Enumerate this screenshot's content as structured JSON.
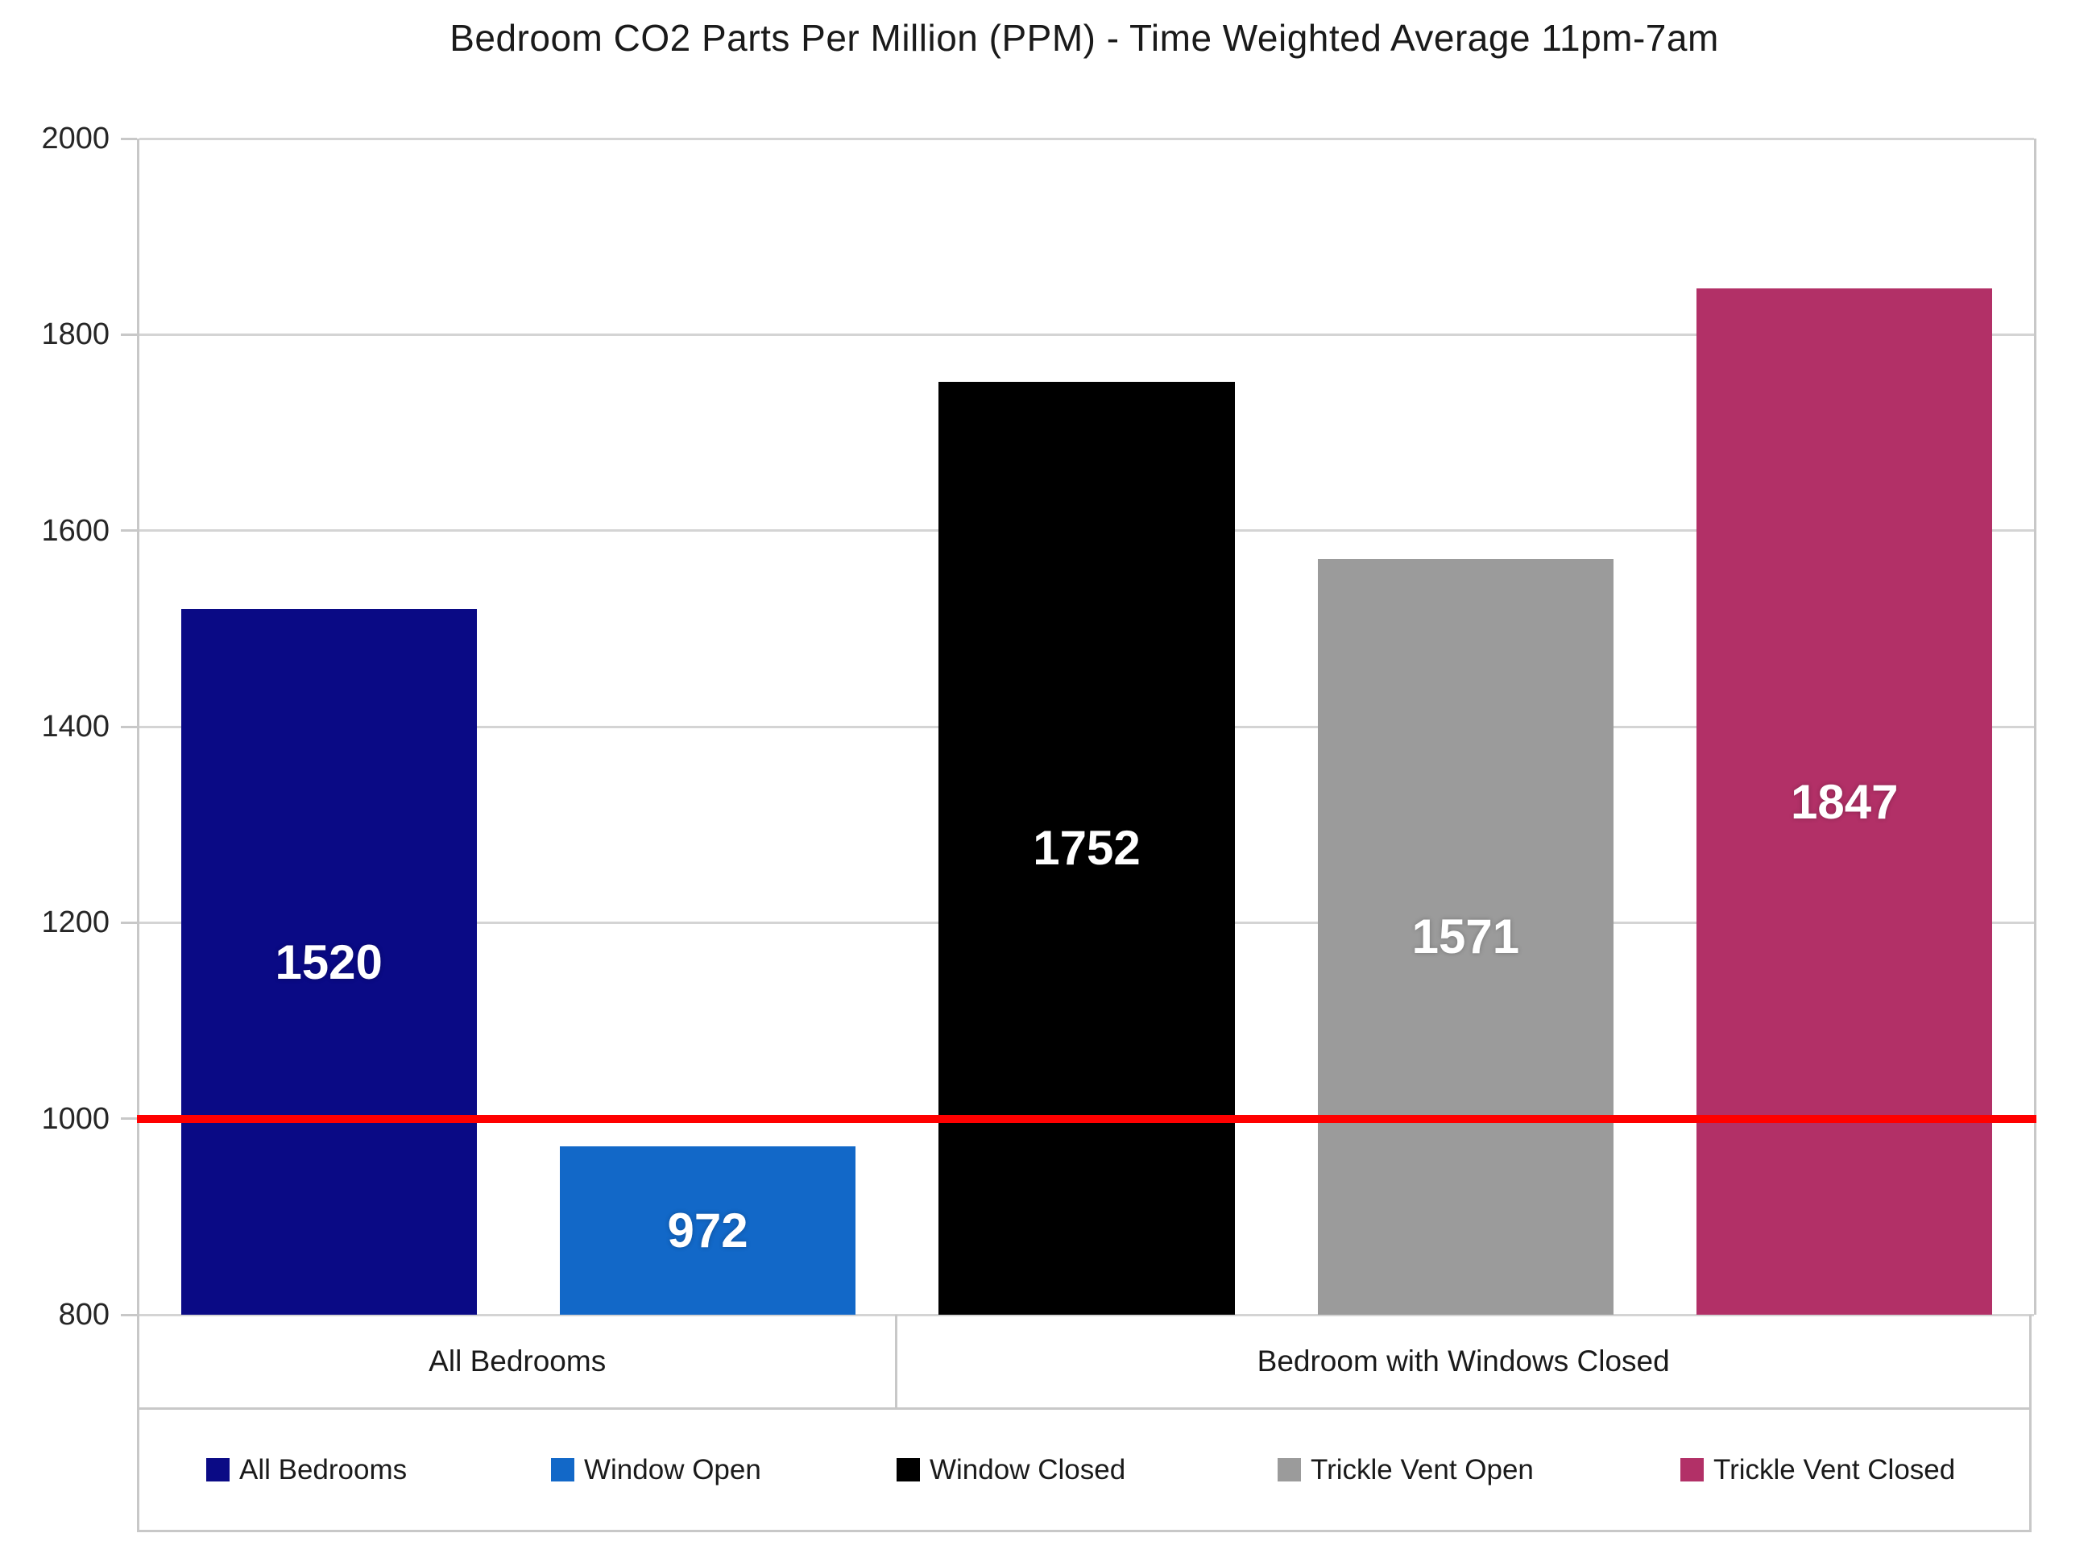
{
  "chart_data": {
    "type": "bar",
    "title": "Bedroom CO2 Parts Per Million (PPM) - Time Weighted Average 11pm-7am",
    "categories": [
      "All Bedrooms",
      "Window Open",
      "Window Closed",
      "Trickle Vent Open",
      "Trickle Vent Closed"
    ],
    "values": [
      1520,
      972,
      1752,
      1571,
      1847
    ],
    "value_labels": [
      "1520",
      "972",
      "1752",
      "1571",
      "1847"
    ],
    "bar_colors": [
      "#0A0A85",
      "#1268C8",
      "#000000",
      "#9B9B9B",
      "#B23067"
    ],
    "group_labels": [
      {
        "label": "All Bedrooms",
        "span": 2
      },
      {
        "label": "Bedroom with Windows Closed",
        "span": 3
      }
    ],
    "ylim": [
      800,
      2000
    ],
    "yticks": [
      800,
      1000,
      1200,
      1400,
      1600,
      1800,
      2000
    ],
    "reference_line": {
      "value": 1000,
      "color": "#FF0000"
    },
    "legend": [
      {
        "label": "All Bedrooms",
        "color": "#0A0A85"
      },
      {
        "label": "Window Open",
        "color": "#1268C8"
      },
      {
        "label": "Window Closed",
        "color": "#000000"
      },
      {
        "label": "Trickle Vent Open",
        "color": "#9B9B9B"
      },
      {
        "label": "Trickle Vent Closed",
        "color": "#B23067"
      }
    ],
    "grid": true,
    "legend_position": "bottom",
    "xlabel": "",
    "ylabel": ""
  },
  "colors": {
    "gridline": "#d4d4d4",
    "axis_border": "#c8c8c8",
    "reference_line": "#FF0000",
    "background": "#ffffff",
    "text": "#1a1a1a"
  }
}
